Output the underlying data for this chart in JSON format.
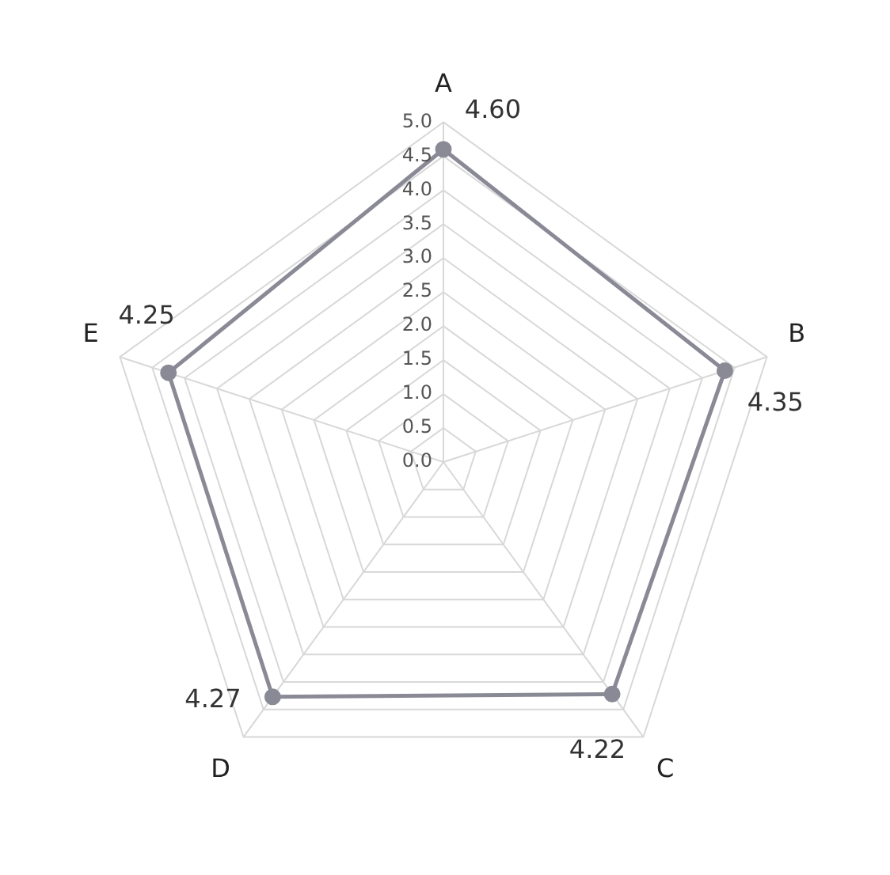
{
  "chart_data": {
    "type": "radar",
    "categories": [
      "A",
      "B",
      "C",
      "D",
      "E"
    ],
    "series": [
      {
        "color": "#8a8a96",
        "values": [
          4.6,
          4.35,
          4.22,
          4.27,
          4.25
        ],
        "value_labels": [
          "4.60",
          "4.35",
          "4.22",
          "4.27",
          "4.25"
        ]
      }
    ],
    "ylim": [
      0,
      5
    ],
    "yticks": [
      {
        "value": 0,
        "label": "0.0"
      },
      {
        "value": 0.5,
        "label": "0.5"
      },
      {
        "value": 1,
        "label": "1.0"
      },
      {
        "value": 1.5,
        "label": "1.5"
      },
      {
        "value": 2,
        "label": "2.0"
      },
      {
        "value": 2.5,
        "label": "2.5"
      },
      {
        "value": 3,
        "label": "3.0"
      },
      {
        "value": 3.5,
        "label": "3.5"
      },
      {
        "value": 4,
        "label": "4.0"
      },
      {
        "value": 4.5,
        "label": "4.5"
      },
      {
        "value": 5,
        "label": "5.0"
      }
    ],
    "grid": true,
    "marker": "circle",
    "legend": false
  }
}
